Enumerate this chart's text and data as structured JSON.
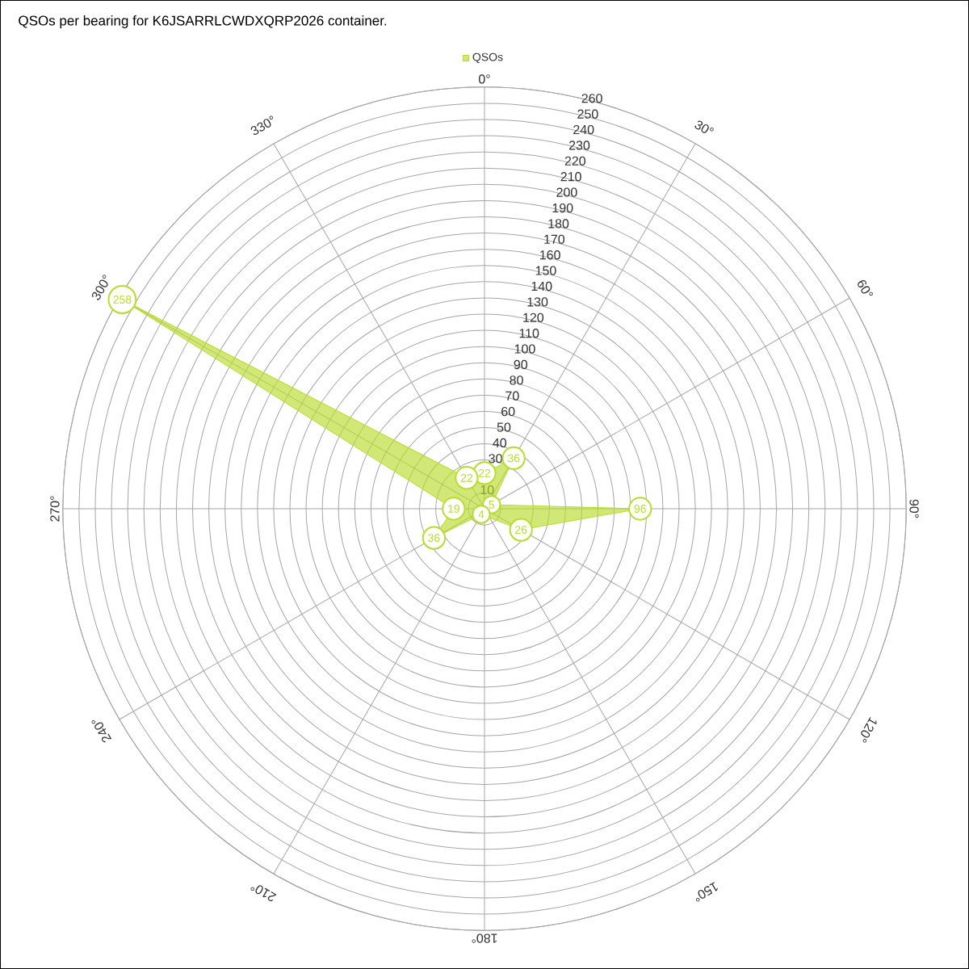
{
  "chart_data": {
    "type": "radar",
    "title": "QSOs per bearing for K6JSARRLCWDXQRP2026 container.",
    "categories": [
      "0°",
      "30°",
      "60°",
      "90°",
      "120°",
      "150°",
      "180°",
      "210°",
      "240°",
      "270°",
      "300°",
      "330°"
    ],
    "ylim": [
      0,
      260
    ],
    "yticks": [
      10,
      30,
      40,
      50,
      60,
      70,
      80,
      90,
      100,
      110,
      120,
      130,
      140,
      150,
      160,
      170,
      180,
      190,
      200,
      210,
      220,
      230,
      240,
      250,
      260
    ],
    "series": [
      {
        "name": "QSOs",
        "color": "#b8dc2e",
        "values": [
          22,
          36,
          5,
          96,
          26,
          null,
          null,
          4,
          36,
          19,
          258,
          22
        ]
      }
    ],
    "data_labels": true,
    "grid": true,
    "legend": "top"
  }
}
